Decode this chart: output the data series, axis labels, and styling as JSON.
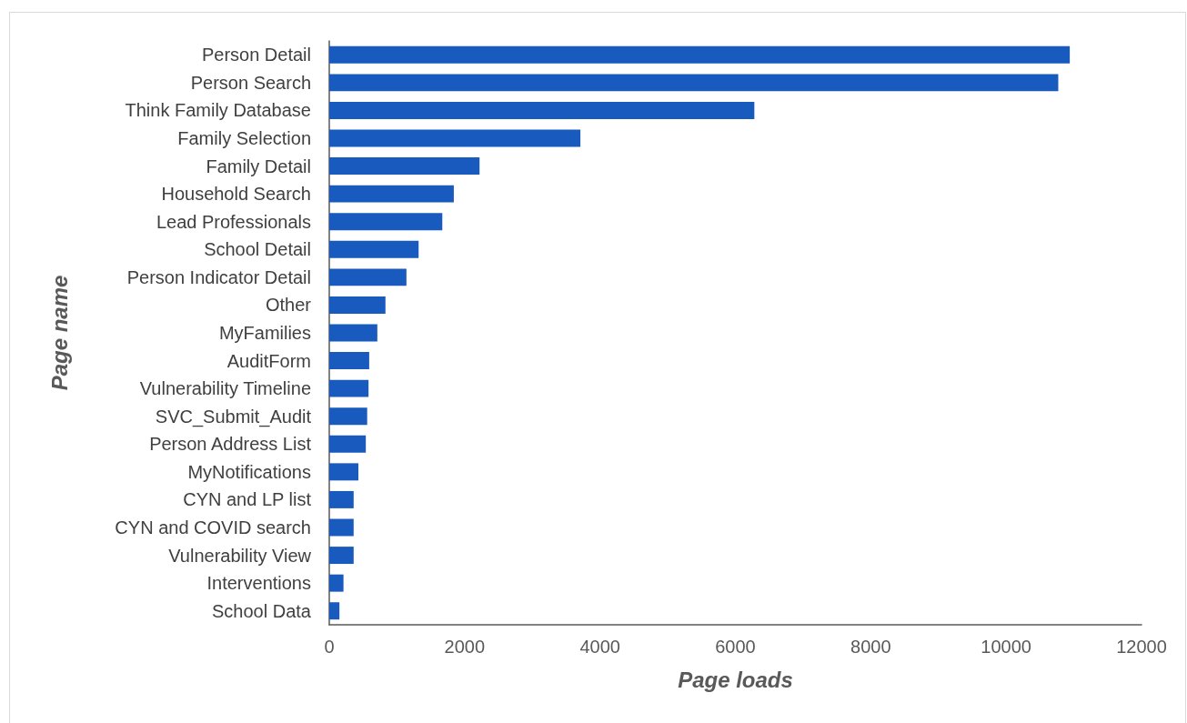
{
  "chart_data": {
    "type": "bar",
    "orientation": "horizontal",
    "xlabel": "Page loads",
    "ylabel": "Page name",
    "categories": [
      "Person Detail",
      "Person Search",
      "Think Family Database",
      "Family Selection",
      "Family Detail",
      "Household Search",
      "Lead Professionals",
      "School Detail",
      "Person Indicator Detail",
      "Other",
      "MyFamilies",
      "AuditForm",
      "Vulnerability Timeline",
      "SVC_Submit_Audit",
      "Person Address List",
      "MyNotifications",
      "CYN and LP list",
      "CYN and COVID search",
      "Vulnerability View",
      "Interventions",
      "School Data"
    ],
    "values": [
      10940,
      10770,
      6280,
      3710,
      2220,
      1840,
      1670,
      1320,
      1140,
      830,
      710,
      590,
      580,
      560,
      540,
      430,
      360,
      360,
      360,
      210,
      150
    ],
    "color": "#185abd",
    "xlim": [
      0,
      12000
    ],
    "xticks": [
      0,
      2000,
      4000,
      6000,
      8000,
      10000,
      12000
    ],
    "grid": false
  }
}
